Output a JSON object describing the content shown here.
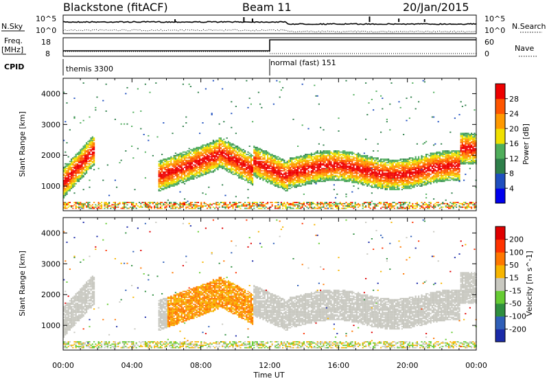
{
  "header": {
    "station": "Blackstone (fitACF)",
    "beam": "Beam 11",
    "date": "20/Jan/2015"
  },
  "noise_panel": {
    "left_label": "N.Sky",
    "right_label": "N.Search",
    "left_ticks": [
      "10^5",
      "10^0"
    ],
    "right_ticks": [
      "10^5",
      "10^0"
    ]
  },
  "freq_panel": {
    "left_label_1": "Freq.",
    "left_label_2": "[MHz]",
    "right_label": "Nave",
    "left_ticks": [
      "18",
      "8"
    ],
    "right_ticks": [
      "60",
      "0"
    ]
  },
  "cpid": {
    "label": "CPID",
    "segments": [
      "themis 3300",
      "normal (fast) 151"
    ],
    "switch_hour": 12.0
  },
  "chart_data": [
    {
      "type": "heatmap",
      "name": "power",
      "ylabel": "Slant Range [km]",
      "xlabel": "",
      "yticks": [
        "1000",
        "2000",
        "3000",
        "4000"
      ],
      "ylim": [
        200,
        4500
      ],
      "xlim": [
        0,
        24
      ],
      "colorbar": {
        "label": "Power [dB]",
        "ticks": [
          "4",
          "8",
          "12",
          "16",
          "20",
          "24",
          "28"
        ],
        "colors": [
          "#0000ee",
          "#1f4fbf",
          "#2e7f4a",
          "#4fae5b",
          "#f0e000",
          "#ff9900",
          "#ff5500",
          "#ee0000"
        ]
      }
    },
    {
      "type": "heatmap",
      "name": "velocity",
      "ylabel": "Slant Range [km]",
      "xlabel": "Time UT",
      "yticks": [
        "1000",
        "2000",
        "3000",
        "4000"
      ],
      "xticks": [
        "00:00",
        "04:00",
        "08:00",
        "12:00",
        "16:00",
        "20:00",
        "00:00"
      ],
      "ylim": [
        200,
        4500
      ],
      "xlim": [
        0,
        24
      ],
      "colorbar": {
        "label": "Velocity [m s^-1]",
        "ticks": [
          "200",
          "100",
          "50",
          "15",
          "-15",
          "-50",
          "-100",
          "-200"
        ],
        "colors": [
          "#1a2aa8",
          "#2f5fb8",
          "#2f8f3f",
          "#66cc33",
          "#c8c8c0",
          "#f7b500",
          "#ff7700",
          "#ff3300",
          "#e00000"
        ]
      }
    }
  ]
}
